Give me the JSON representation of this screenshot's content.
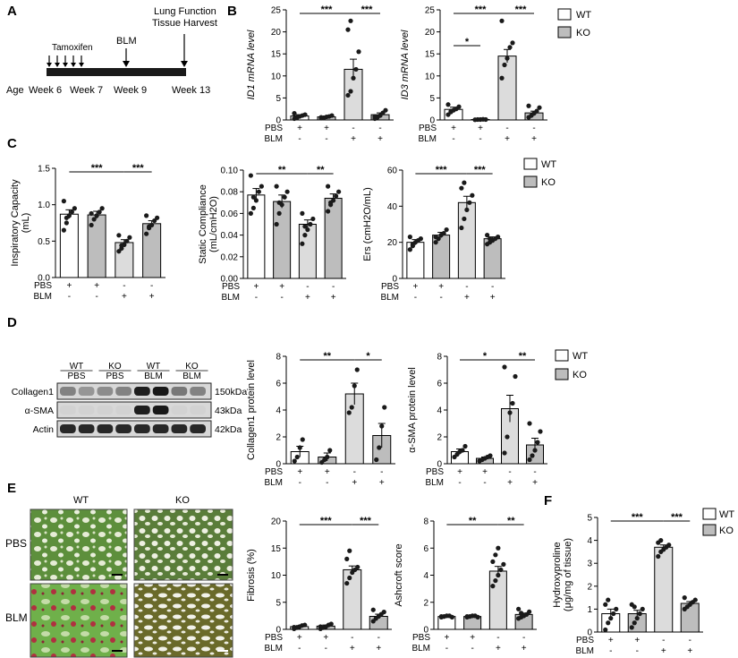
{
  "panels": {
    "A": "A",
    "B": "B",
    "C": "C",
    "D": "D",
    "E": "E",
    "F": "F"
  },
  "colors": {
    "wt_fill": "#ffffff",
    "ko_fill": "#bdbdbd",
    "blm_wt_fill": "#dcdcdc",
    "stroke": "#000000",
    "tissue_green": "#6f9a45",
    "fibrosis_red": "#b03040"
  },
  "legend": {
    "wt": "WT",
    "ko": "KO"
  },
  "timeline": {
    "age_label": "Age",
    "weeks": [
      "Week 6",
      "Week 7",
      "Week 9",
      "Week 13"
    ],
    "tamoxifen": "Tamoxifen",
    "blm": "BLM",
    "endpoint_line1": "Lung Function",
    "endpoint_line2": "Tissue Harvest"
  },
  "treatment_rows": {
    "pbs_label": "PBS",
    "blm_label": "BLM",
    "pbs_marks": [
      "+",
      "+",
      "-",
      "-"
    ],
    "blm_marks": [
      "-",
      "-",
      "+",
      "+"
    ]
  },
  "western": {
    "col_labels": [
      {
        "l1": "WT",
        "l2": "PBS"
      },
      {
        "l1": "KO",
        "l2": "PBS"
      },
      {
        "l1": "WT",
        "l2": "BLM"
      },
      {
        "l1": "KO",
        "l2": "BLM"
      }
    ],
    "rows": [
      {
        "name": "Collagen1",
        "kda": "150kDa",
        "intensity": [
          0.45,
          0.35,
          0.4,
          0.45,
          0.95,
          0.98,
          0.5,
          0.45
        ]
      },
      {
        "name": "α-SMA",
        "kda": "43kDa",
        "intensity": [
          0.05,
          0.05,
          0.05,
          0.05,
          0.95,
          0.98,
          0.05,
          0.05
        ]
      },
      {
        "name": "Actin",
        "kda": "42kDa",
        "intensity": [
          0.9,
          0.9,
          0.9,
          0.9,
          0.9,
          0.9,
          0.9,
          0.9
        ]
      }
    ]
  },
  "histology": {
    "col_wt": "WT",
    "col_ko": "KO",
    "row_pbs": "PBS",
    "row_blm": "BLM"
  },
  "chart_data": [
    {
      "id": "B1",
      "type": "bar",
      "ylabel": "ID1 mRNA level",
      "ylim": [
        0,
        25
      ],
      "yticks": [
        0,
        5,
        10,
        15,
        20,
        25
      ],
      "categories": [
        "WT PBS",
        "KO PBS",
        "WT BLM",
        "KO BLM"
      ],
      "values": [
        0.9,
        0.7,
        11.5,
        1.2
      ],
      "errors": [
        0.3,
        0.2,
        2.3,
        0.4
      ],
      "points": [
        [
          0.3,
          0.5,
          0.8,
          1.0,
          1.2,
          1.5,
          0.6
        ],
        [
          0.4,
          0.5,
          0.7,
          0.8,
          1.0,
          0.6
        ],
        [
          5.6,
          6.5,
          9.5,
          11.5,
          15.5,
          20.5,
          22.5
        ],
        [
          0.3,
          0.6,
          1.0,
          1.6,
          2.2,
          0.8
        ]
      ],
      "sig": [
        {
          "from": 0,
          "to": 2,
          "label": "***"
        },
        {
          "from": 2,
          "to": 3,
          "label": "***"
        }
      ]
    },
    {
      "id": "B2",
      "type": "bar",
      "ylabel": "ID3 mRNA level",
      "ylim": [
        0,
        25
      ],
      "yticks": [
        0,
        5,
        10,
        15,
        20,
        25
      ],
      "categories": [
        "WT PBS",
        "KO PBS",
        "WT BLM",
        "KO BLM"
      ],
      "values": [
        2.4,
        0.1,
        14.5,
        1.6
      ],
      "errors": [
        0.5,
        0.05,
        1.5,
        0.4
      ],
      "points": [
        [
          1.2,
          1.8,
          2.2,
          2.5,
          3.0,
          3.5,
          2.0
        ],
        [
          0.05,
          0.1,
          0.1,
          0.15,
          0.1
        ],
        [
          9.5,
          12.5,
          14.0,
          16.5,
          17.5,
          22.5
        ],
        [
          0.6,
          1.0,
          1.5,
          2.0,
          2.8,
          3.2
        ]
      ],
      "sig": [
        {
          "from": 0,
          "to": 1,
          "label": "*"
        },
        {
          "from": 0,
          "to": 2,
          "label": "***"
        },
        {
          "from": 2,
          "to": 3,
          "label": "***"
        }
      ]
    },
    {
      "id": "C1",
      "type": "bar",
      "ylabel": "Inspiratory Capacity (mL)",
      "ylim": [
        0,
        1.5
      ],
      "yticks": [
        0,
        0.5,
        1.0,
        1.5
      ],
      "ytick_labels": [
        "0.0",
        "0.5",
        "1.0",
        "1.5"
      ],
      "categories": [
        "WT PBS",
        "KO PBS",
        "WT BLM",
        "KO BLM"
      ],
      "values": [
        0.87,
        0.86,
        0.48,
        0.74
      ],
      "errors": [
        0.06,
        0.05,
        0.04,
        0.04
      ],
      "points": [
        [
          0.65,
          0.75,
          0.85,
          0.9,
          0.95,
          1.05,
          0.82
        ],
        [
          0.72,
          0.8,
          0.85,
          0.9,
          0.95,
          0.88
        ],
        [
          0.36,
          0.4,
          0.45,
          0.5,
          0.55,
          0.58,
          0.44
        ],
        [
          0.6,
          0.68,
          0.72,
          0.78,
          0.82,
          0.85,
          0.7
        ]
      ],
      "sig": [
        {
          "from": 0,
          "to": 2,
          "label": "***"
        },
        {
          "from": 2,
          "to": 3,
          "label": "***"
        }
      ]
    },
    {
      "id": "C2",
      "type": "bar",
      "ylabel": "Static Compliance (mL/cmH2O)",
      "ylim": [
        0,
        0.1
      ],
      "yticks": [
        0,
        0.02,
        0.04,
        0.06,
        0.08,
        0.1
      ],
      "ytick_labels": [
        "0.00",
        "0.02",
        "0.04",
        "0.06",
        "0.08",
        "0.10"
      ],
      "categories": [
        "WT PBS",
        "KO PBS",
        "WT BLM",
        "KO BLM"
      ],
      "values": [
        0.077,
        0.071,
        0.05,
        0.074
      ],
      "errors": [
        0.006,
        0.006,
        0.004,
        0.004
      ],
      "points": [
        [
          0.06,
          0.065,
          0.072,
          0.08,
          0.085,
          0.095,
          0.075
        ],
        [
          0.05,
          0.06,
          0.068,
          0.075,
          0.08,
          0.085,
          0.07
        ],
        [
          0.032,
          0.04,
          0.045,
          0.05,
          0.055,
          0.06,
          0.048
        ],
        [
          0.062,
          0.068,
          0.072,
          0.076,
          0.08,
          0.085,
          0.07
        ]
      ],
      "sig": [
        {
          "from": 0,
          "to": 2,
          "label": "**"
        },
        {
          "from": 2,
          "to": 3,
          "label": "**"
        }
      ]
    },
    {
      "id": "C3",
      "type": "bar",
      "ylabel": "Ers (cmH2O/mL)",
      "ylim": [
        0,
        60
      ],
      "yticks": [
        0,
        20,
        40,
        60
      ],
      "categories": [
        "WT PBS",
        "KO PBS",
        "WT BLM",
        "KO BLM"
      ],
      "values": [
        20,
        24,
        42,
        22
      ],
      "errors": [
        1.5,
        1.5,
        3.5,
        1.0
      ],
      "points": [
        [
          16,
          18,
          20,
          21,
          22,
          23,
          19
        ],
        [
          20,
          22,
          24,
          25,
          27,
          23
        ],
        [
          28,
          33,
          38,
          42,
          46,
          50,
          53
        ],
        [
          19,
          20,
          21,
          22,
          23,
          24,
          22
        ]
      ],
      "sig": [
        {
          "from": 0,
          "to": 2,
          "label": "***"
        },
        {
          "from": 2,
          "to": 3,
          "label": "***"
        }
      ]
    },
    {
      "id": "D1",
      "type": "bar",
      "ylabel": "Collagen1 protein level",
      "ylim": [
        0,
        8
      ],
      "yticks": [
        0,
        2,
        4,
        6,
        8
      ],
      "categories": [
        "WT PBS",
        "KO PBS",
        "WT BLM",
        "KO BLM"
      ],
      "values": [
        0.9,
        0.5,
        5.2,
        2.1
      ],
      "errors": [
        0.4,
        0.3,
        0.8,
        0.9
      ],
      "points": [
        [
          0.2,
          0.5,
          1.2,
          1.8
        ],
        [
          0.1,
          0.3,
          0.5,
          1.0
        ],
        [
          3.8,
          4.2,
          5.8,
          7.0
        ],
        [
          0.3,
          1.2,
          2.8,
          4.2
        ]
      ],
      "sig": [
        {
          "from": 0,
          "to": 2,
          "label": "**"
        },
        {
          "from": 2,
          "to": 3,
          "label": "*"
        }
      ]
    },
    {
      "id": "D2",
      "type": "bar",
      "ylabel": "α-SMA protein level",
      "ylim": [
        0,
        8
      ],
      "yticks": [
        0,
        2,
        4,
        6,
        8
      ],
      "categories": [
        "WT PBS",
        "KO PBS",
        "WT BLM",
        "KO BLM"
      ],
      "values": [
        0.9,
        0.4,
        4.1,
        1.4
      ],
      "errors": [
        0.2,
        0.1,
        1.0,
        0.5
      ],
      "points": [
        [
          0.5,
          0.7,
          0.9,
          1.0,
          1.3
        ],
        [
          0.2,
          0.3,
          0.4,
          0.5,
          0.6
        ],
        [
          0.8,
          2.0,
          3.8,
          4.5,
          6.5,
          7.2
        ],
        [
          0.3,
          0.6,
          1.0,
          1.6,
          2.4,
          3.0
        ]
      ],
      "sig": [
        {
          "from": 0,
          "to": 2,
          "label": "*"
        },
        {
          "from": 2,
          "to": 3,
          "label": "**"
        }
      ]
    },
    {
      "id": "E1",
      "type": "bar",
      "ylabel": "Fibrosis (%)",
      "ylim": [
        0,
        20
      ],
      "yticks": [
        0,
        5,
        10,
        15,
        20
      ],
      "categories": [
        "WT PBS",
        "KO PBS",
        "WT BLM",
        "KO BLM"
      ],
      "values": [
        0.5,
        0.6,
        11.0,
        2.4
      ],
      "errors": [
        0.2,
        0.2,
        0.7,
        0.4
      ],
      "points": [
        [
          0.1,
          0.3,
          0.5,
          0.7,
          0.8,
          0.4
        ],
        [
          0.1,
          0.3,
          0.5,
          0.8,
          1.0,
          0.5
        ],
        [
          8.5,
          9.5,
          10.5,
          11.0,
          11.5,
          13.0,
          14.5
        ],
        [
          1.5,
          2.0,
          2.4,
          2.8,
          3.2,
          3.6
        ]
      ],
      "sig": [
        {
          "from": 0,
          "to": 2,
          "label": "***"
        },
        {
          "from": 2,
          "to": 3,
          "label": "***"
        }
      ]
    },
    {
      "id": "E2",
      "type": "bar",
      "ylabel": "Ashcroft score",
      "ylim": [
        0,
        8
      ],
      "yticks": [
        0,
        2,
        4,
        6,
        8
      ],
      "categories": [
        "WT PBS",
        "KO PBS",
        "WT BLM",
        "KO BLM"
      ],
      "values": [
        0.95,
        0.95,
        4.3,
        1.1
      ],
      "errors": [
        0.05,
        0.05,
        0.35,
        0.1
      ],
      "points": [
        [
          0.9,
          0.95,
          1.0,
          1.0,
          0.9,
          0.95
        ],
        [
          0.9,
          0.95,
          1.0,
          1.0,
          0.9,
          0.95
        ],
        [
          3.2,
          3.6,
          4.0,
          4.4,
          4.8,
          5.0,
          5.5,
          6.0
        ],
        [
          0.8,
          0.9,
          1.0,
          1.1,
          1.3,
          1.5,
          1.2
        ]
      ],
      "sig": [
        {
          "from": 0,
          "to": 2,
          "label": "**"
        },
        {
          "from": 2,
          "to": 3,
          "label": "**"
        }
      ]
    },
    {
      "id": "F",
      "type": "bar",
      "ylabel": "Hydroxyproline (μg/mg of tissue)",
      "ylim": [
        0,
        5
      ],
      "yticks": [
        0,
        1,
        2,
        3,
        4,
        5
      ],
      "categories": [
        "WT PBS",
        "KO PBS",
        "WT BLM",
        "KO BLM"
      ],
      "values": [
        0.8,
        0.8,
        3.7,
        1.25
      ],
      "errors": [
        0.2,
        0.15,
        0.1,
        0.08
      ],
      "points": [
        [
          0.1,
          0.4,
          0.6,
          0.8,
          1.0,
          1.2,
          1.4
        ],
        [
          0.2,
          0.4,
          0.6,
          0.8,
          1.0,
          1.2,
          1.1
        ],
        [
          3.3,
          3.5,
          3.6,
          3.7,
          3.8,
          3.9,
          4.0
        ],
        [
          1.0,
          1.1,
          1.2,
          1.3,
          1.4,
          1.5
        ]
      ],
      "sig": [
        {
          "from": 0,
          "to": 2,
          "label": "***"
        },
        {
          "from": 2,
          "to": 3,
          "label": "***"
        }
      ]
    }
  ]
}
